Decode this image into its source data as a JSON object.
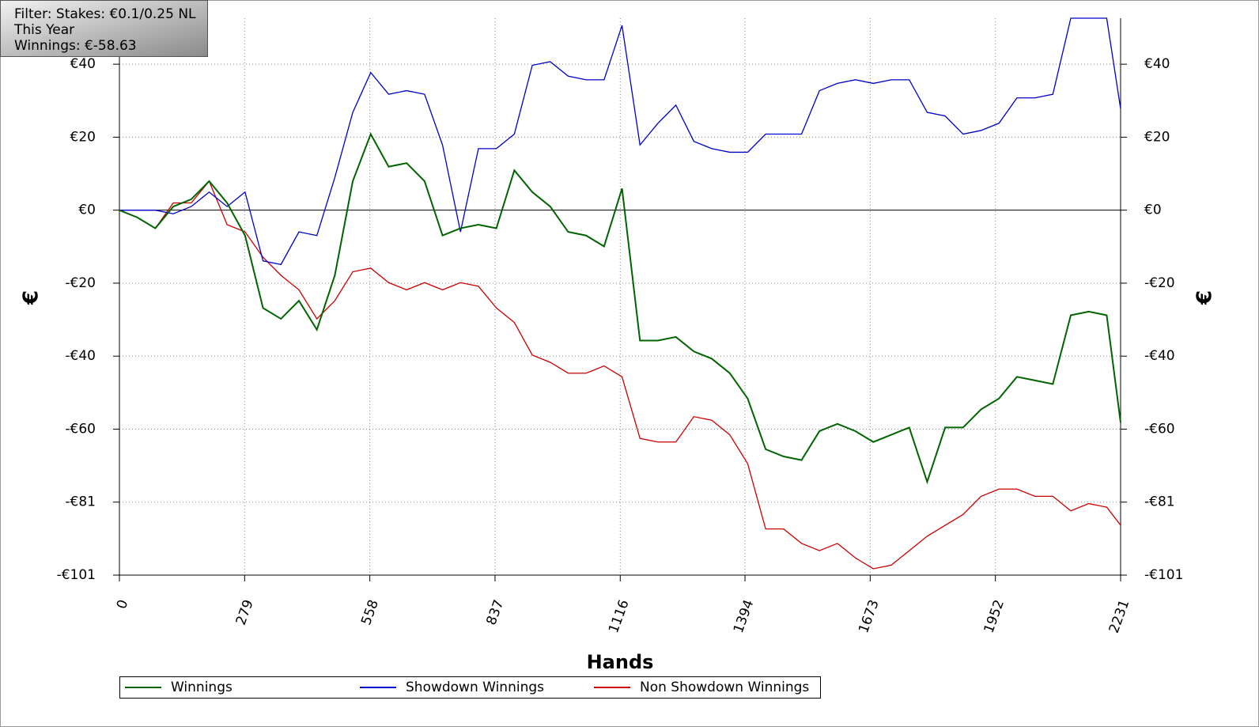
{
  "chart_data": {
    "type": "line",
    "info": [
      "Filter: Stakes: €0.1/0.25 NL",
      "This Year",
      "Winnings: €-58.63"
    ],
    "x_label": "Hands",
    "y_label": "€",
    "x": [
      0,
      40,
      80,
      120,
      160,
      200,
      240,
      280,
      320,
      360,
      400,
      440,
      480,
      520,
      560,
      600,
      640,
      680,
      720,
      760,
      800,
      840,
      880,
      920,
      960,
      1000,
      1040,
      1080,
      1120,
      1160,
      1200,
      1240,
      1280,
      1320,
      1360,
      1400,
      1440,
      1480,
      1520,
      1560,
      1600,
      1640,
      1680,
      1720,
      1760,
      1800,
      1840,
      1880,
      1920,
      1960,
      2000,
      2040,
      2080,
      2120,
      2160,
      2200,
      2231
    ],
    "series": [
      {
        "name": "Winnings",
        "color": "#006400",
        "values": [
          0,
          -2,
          -5,
          1,
          3,
          8,
          2,
          -7,
          -27,
          -30,
          -25,
          -33,
          -18,
          8,
          21,
          12,
          13,
          8,
          -7,
          -5,
          -4,
          -5,
          11,
          5,
          1,
          -6,
          -7,
          -10,
          6,
          -36,
          -36,
          -35,
          -39,
          -41,
          -45,
          -52,
          -66,
          -68,
          -69,
          -61,
          -59,
          -61,
          -64,
          -62,
          -60,
          -75,
          -60,
          -60,
          -55,
          -52,
          -46,
          -47,
          -48,
          -29,
          -28,
          -29,
          -58.63
        ]
      },
      {
        "name": "Showdown Winnings",
        "color": "#0000cc",
        "values": [
          0,
          0,
          0,
          -1,
          1,
          5,
          1,
          5,
          -14,
          -15,
          -6,
          -7,
          9,
          27,
          38,
          32,
          33,
          32,
          18,
          -6,
          17,
          17,
          21,
          40,
          41,
          37,
          36,
          36,
          51,
          18,
          24,
          29,
          19,
          17,
          16,
          16,
          21,
          21,
          21,
          33,
          35,
          36,
          35,
          36,
          36,
          27,
          26,
          21,
          22,
          24,
          31,
          31,
          32,
          53,
          53,
          53,
          28
        ]
      },
      {
        "name": "Non Showdown Winnings",
        "color": "#cc0000",
        "values": [
          0,
          -2,
          -5,
          2,
          2,
          8,
          -4,
          -6,
          -13,
          -18,
          -22,
          -30,
          -25,
          -17,
          -16,
          -20,
          -22,
          -20,
          -22,
          -20,
          -21,
          -27,
          -31,
          -40,
          -42,
          -45,
          -45,
          -43,
          -46,
          -63,
          -64,
          -64,
          -57,
          -58,
          -62,
          -70,
          -88,
          -88,
          -92,
          -94,
          -92,
          -96,
          -99,
          -98,
          -94,
          -90,
          -87,
          -84,
          -79,
          -77,
          -77,
          -79,
          -79,
          -83,
          -81,
          -82,
          -87
        ]
      }
    ],
    "xlim": [
      0,
      2231
    ],
    "xticks": [
      0,
      279,
      558,
      837,
      1116,
      1394,
      1673,
      1952,
      2231
    ],
    "ylim": [
      -100.75,
      53
    ],
    "yticks": [
      {
        "value": 40.3,
        "label": "€40"
      },
      {
        "value": 20.15,
        "label": "€20"
      },
      {
        "value": 0,
        "label": "€0"
      },
      {
        "value": -20.15,
        "label": "-€20"
      },
      {
        "value": -40.3,
        "label": "-€40"
      },
      {
        "value": -60.45,
        "label": "-€60"
      },
      {
        "value": -80.6,
        "label": "-€81"
      },
      {
        "value": -100.75,
        "label": "-€101"
      }
    ],
    "grid": true
  }
}
